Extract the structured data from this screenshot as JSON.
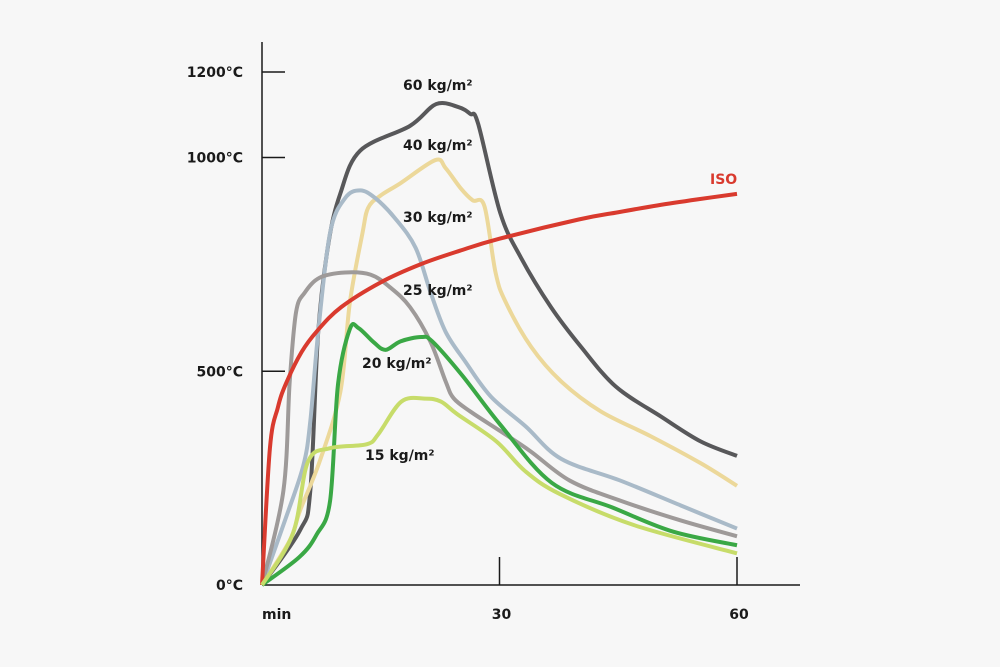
{
  "chart_data": {
    "type": "line",
    "title": "",
    "xlabel": "min",
    "ylabel": "",
    "xlim": [
      0,
      60
    ],
    "ylim": [
      0,
      1200
    ],
    "grid": false,
    "x_ticks": [
      {
        "value": 0,
        "label": "min"
      },
      {
        "value": 30,
        "label": "30"
      },
      {
        "value": 60,
        "label": "60"
      }
    ],
    "y_ticks": [
      {
        "value": 0,
        "label": "0°C"
      },
      {
        "value": 500,
        "label": "500°C"
      },
      {
        "value": 1000,
        "label": "1000°C"
      },
      {
        "value": 1200,
        "label": "1200°C"
      }
    ],
    "series": [
      {
        "name": "ISO",
        "color": "#d93a2e",
        "x": [
          0,
          1,
          2,
          3,
          5,
          7,
          10,
          15,
          20,
          25,
          30,
          40,
          45,
          50,
          55,
          60
        ],
        "y": [
          0,
          320,
          415,
          470,
          545,
          595,
          650,
          708,
          750,
          782,
          810,
          855,
          872,
          888,
          902,
          915
        ]
      },
      {
        "name": "60 kg/m²",
        "color": "#58585a",
        "x": [
          0,
          4.8,
          6.1,
          7.1,
          8.4,
          9.9,
          12.4,
          18.7,
          22,
          24.8,
          26.3,
          27.3,
          30.1,
          32.7,
          36.5,
          40.3,
          44.7,
          50.4,
          55.4,
          60
        ],
        "y": [
          0,
          128,
          220,
          592,
          800,
          916,
          1016,
          1074,
          1125,
          1118,
          1102,
          1079,
          870,
          766,
          650,
          557,
          464,
          394,
          336,
          302
        ]
      },
      {
        "name": "40 kg/m²",
        "color": "#ecd89a",
        "x": [
          0,
          3.5,
          4.8,
          7.3,
          9.9,
          11.1,
          12.7,
          13.4,
          14.9,
          17.5,
          21.9,
          23.2,
          25.1,
          26.6,
          28.1,
          29.5,
          30.8,
          34,
          37.8,
          42.8,
          49.1,
          55.4,
          60
        ],
        "y": [
          0,
          104,
          174,
          290,
          452,
          661,
          824,
          882,
          910,
          940,
          994,
          975,
          928,
          900,
          886,
          731,
          661,
          557,
          476,
          406,
          348,
          285,
          232
        ]
      },
      {
        "name": "30 kg/m²",
        "color": "#a9bac8",
        "x": [
          0,
          2.9,
          5.2,
          6.1,
          7.1,
          8.6,
          10.5,
          12.4,
          14.3,
          16.8,
          19.4,
          21.3,
          23.2,
          25.7,
          28.9,
          33.3,
          37.8,
          45.3,
          52.9,
          60
        ],
        "y": [
          0,
          151,
          278,
          383,
          592,
          824,
          905,
          923,
          905,
          858,
          789,
          684,
          592,
          522,
          441,
          371,
          295,
          244,
          186,
          132
        ]
      },
      {
        "name": "25 kg/m²",
        "color": "#9e9a99",
        "x": [
          0,
          2.7,
          3.5,
          4.3,
          5.4,
          7.3,
          10.5,
          13.7,
          16.2,
          18.7,
          21.3,
          23.2,
          24.2,
          26.3,
          30.1,
          33.9,
          38.9,
          45.3,
          52.9,
          60
        ],
        "y": [
          0,
          220,
          476,
          638,
          684,
          719,
          731,
          726,
          696,
          650,
          568,
          476,
          437,
          406,
          360,
          313,
          244,
          197,
          151,
          114
        ]
      },
      {
        "name": "20 kg/m²",
        "color": "#3aa845",
        "x": [
          0,
          4.7,
          6.9,
          8.6,
          9.6,
          11.1,
          12.2,
          14.1,
          15.6,
          17.5,
          20.1,
          21.5,
          25.3,
          30.1,
          36.6,
          44.3,
          51.9,
          60
        ],
        "y": [
          0,
          65,
          118,
          197,
          469,
          599,
          601,
          568,
          550,
          570,
          580,
          570,
          490,
          375,
          239,
          181,
          125,
          93
        ]
      },
      {
        "name": "15 kg/m²",
        "color": "#c7dc6a",
        "x": [
          0,
          3.9,
          5.8,
          8.6,
          13.2,
          14.7,
          17.6,
          20.6,
          22.6,
          24.7,
          29.6,
          33.2,
          37.6,
          47,
          60
        ],
        "y": [
          0,
          120,
          288,
          320,
          329,
          353,
          429,
          436,
          429,
          399,
          336,
          267,
          213,
          140,
          74
        ]
      }
    ]
  }
}
